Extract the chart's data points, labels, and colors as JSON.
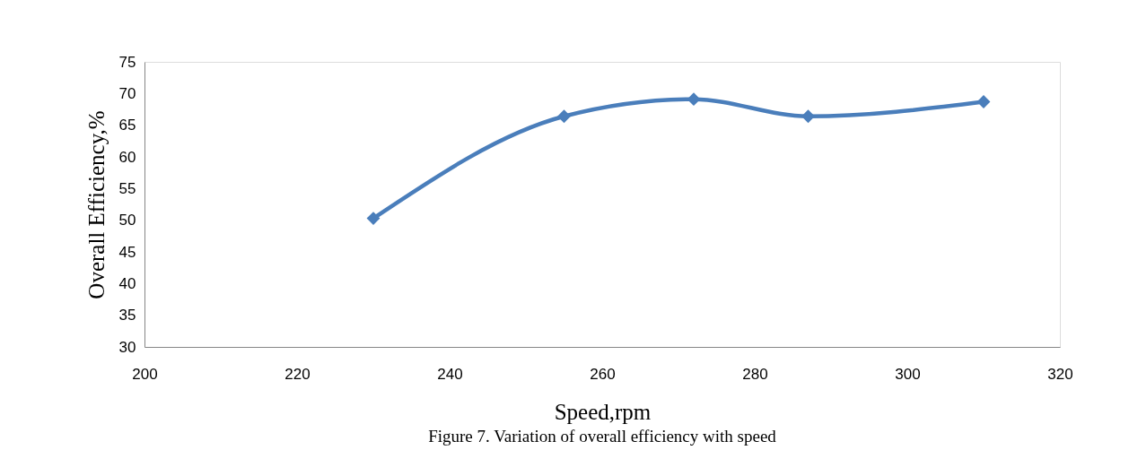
{
  "chart_data": {
    "type": "line",
    "title": "Figure 7. Variation of overall efficiency with speed",
    "xlabel": "Speed,rpm",
    "ylabel": "Overall Efficiency,%",
    "x": [
      230,
      255,
      272,
      287,
      310
    ],
    "series": [
      {
        "color": "#4a7ebb",
        "values": [
          50.3,
          66.4,
          69.1,
          66.4,
          68.7
        ]
      }
    ],
    "xlim": [
      200,
      320
    ],
    "xticks": [
      200,
      220,
      240,
      260,
      280,
      300,
      320
    ],
    "ylim": [
      30,
      75
    ],
    "yticks": [
      30,
      35,
      40,
      45,
      50,
      55,
      60,
      65,
      70,
      75
    ],
    "grid": false,
    "legend": false,
    "marker": "diamond",
    "line_style": "solid"
  }
}
